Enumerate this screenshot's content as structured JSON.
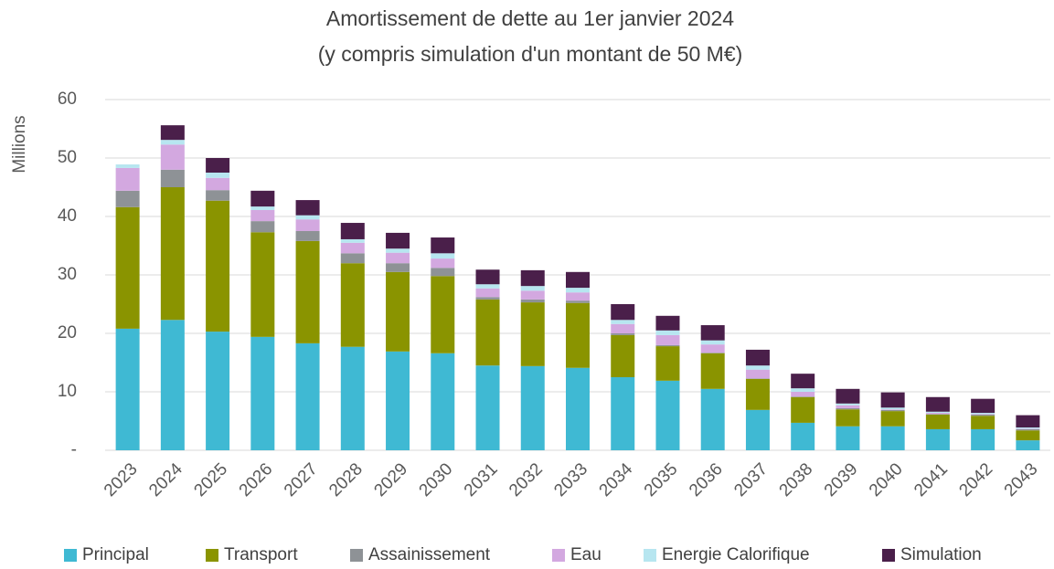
{
  "chart_data": {
    "type": "stacked_bar",
    "title": "Amortissement de dette au 1er janvier 2024",
    "subtitle": "(y compris simulation d'un montant de 50 M€)",
    "y_label": "Millions",
    "categories": [
      "2023",
      "2024",
      "2025",
      "2026",
      "2027",
      "2028",
      "2029",
      "2030",
      "2031",
      "2032",
      "2033",
      "2034",
      "2035",
      "2036",
      "2037",
      "2038",
      "2039",
      "2040",
      "2041",
      "2042",
      "2043"
    ],
    "series": [
      {
        "name": "Principal",
        "color": "#3fb9d3",
        "values": [
          20.8,
          22.3,
          20.3,
          19.4,
          18.3,
          17.7,
          16.9,
          16.6,
          14.5,
          14.4,
          14.1,
          12.5,
          11.9,
          10.5,
          6.9,
          4.7,
          4.1,
          4.1,
          3.6,
          3.6,
          1.7
        ]
      },
      {
        "name": "Transport",
        "color": "#8a9400",
        "values": [
          20.8,
          22.7,
          22.4,
          17.9,
          17.5,
          14.3,
          13.6,
          13.2,
          11.3,
          10.9,
          11.1,
          7.2,
          5.9,
          6.1,
          5.3,
          4.4,
          2.9,
          2.6,
          2.5,
          2.3,
          1.7
        ]
      },
      {
        "name": "Assainissement",
        "color": "#8e9296",
        "values": [
          2.8,
          3.0,
          1.8,
          1.9,
          1.7,
          1.7,
          1.5,
          1.4,
          0.4,
          0.5,
          0.4,
          0.3,
          0.2,
          0.1,
          0.1,
          0.1,
          0.2,
          0.2,
          0.1,
          0.2,
          0.2
        ]
      },
      {
        "name": "Eau",
        "color": "#d3a8e0",
        "values": [
          3.9,
          4.3,
          2.1,
          1.9,
          2.0,
          1.8,
          1.8,
          1.6,
          1.5,
          1.5,
          1.4,
          1.6,
          1.7,
          1.4,
          1.5,
          0.8,
          0.5,
          0.1,
          0.2,
          0.1,
          0.1
        ]
      },
      {
        "name": "Energie Calorifique",
        "color": "#b7e6f0",
        "values": [
          0.6,
          0.8,
          0.9,
          0.6,
          0.7,
          0.6,
          0.7,
          0.9,
          0.7,
          0.8,
          0.8,
          0.7,
          0.8,
          0.7,
          0.7,
          0.6,
          0.3,
          0.3,
          0.2,
          0.2,
          0.2
        ]
      },
      {
        "name": "Simulation",
        "color": "#4a1f4a",
        "values": [
          0,
          2.5,
          2.5,
          2.7,
          2.6,
          2.8,
          2.7,
          2.7,
          2.5,
          2.7,
          2.7,
          2.7,
          2.5,
          2.6,
          2.7,
          2.5,
          2.5,
          2.6,
          2.5,
          2.4,
          2.1
        ]
      }
    ],
    "ylim": [
      0,
      60
    ],
    "yticks": [
      {
        "value": 0,
        "label": "-"
      },
      10,
      20,
      30,
      40,
      50,
      60
    ],
    "grid": true,
    "legend": "bottom"
  }
}
